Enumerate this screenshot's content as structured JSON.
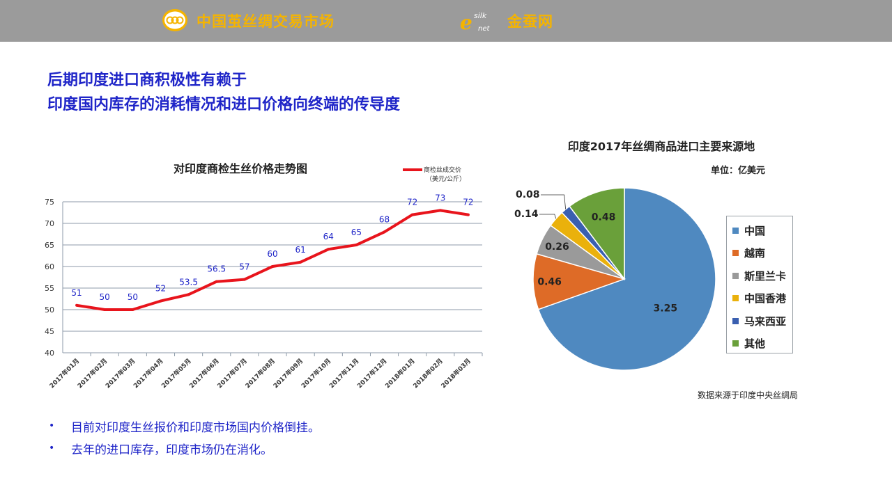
{
  "header": {
    "brand_left": "中国茧丝绸交易市场",
    "brand_right": "金蚕网",
    "logo_right_text": "e silk net",
    "bar_color": "#9b9b9b",
    "brand_color": "#f5b400"
  },
  "headline": {
    "line1": "后期印度进口商积极性有赖于",
    "line2": "印度国内库存的消耗情况和进口价格向终端的传导度"
  },
  "chart_data": [
    {
      "type": "line",
      "title": "对印度商检生丝价格走势图",
      "categories": [
        "2017年01月",
        "2017年02月",
        "2017年03月",
        "2017年04月",
        "2017年05月",
        "2017年06月",
        "2017年07月",
        "2017年08月",
        "2017年09月",
        "2017年10月",
        "2017年11月",
        "2017年12月",
        "2018年01月",
        "2018年02月",
        "2018年03月"
      ],
      "series": [
        {
          "name": "商检丝成交价",
          "name_unit": "（美元/公斤）",
          "values": [
            51,
            50,
            50,
            52,
            53.5,
            56.5,
            57,
            60,
            61,
            64,
            65,
            68,
            72,
            73,
            72
          ],
          "color": "#e8141c"
        }
      ],
      "yticks": [
        40,
        45,
        50,
        55,
        60,
        65,
        70,
        75
      ],
      "ylim": [
        40,
        75
      ],
      "grid": true,
      "legend": "top-right",
      "label_color": "#1f25c8"
    },
    {
      "type": "pie",
      "title": "印度2017年丝绸商品进口主要来源地",
      "unit": "单位：亿美元",
      "slices": [
        {
          "label": "中国",
          "value": 3.25,
          "color": "#4f89c0"
        },
        {
          "label": "越南",
          "value": 0.46,
          "color": "#de6b27"
        },
        {
          "label": "斯里兰卡",
          "value": 0.26,
          "color": "#9a9a9a"
        },
        {
          "label": "中国香港",
          "value": 0.14,
          "color": "#eab10c"
        },
        {
          "label": "马来西亚",
          "value": 0.08,
          "color": "#3a5fb0"
        },
        {
          "label": "其他",
          "value": 0.48,
          "color": "#6aa03a"
        }
      ],
      "legend": "right",
      "source": "数据来源于印度中央丝绸局"
    }
  ],
  "bullets": [
    "目前对印度生丝报价和印度市场国内价格倒挂。",
    "去年的进口库存，印度市场仍在消化。"
  ]
}
